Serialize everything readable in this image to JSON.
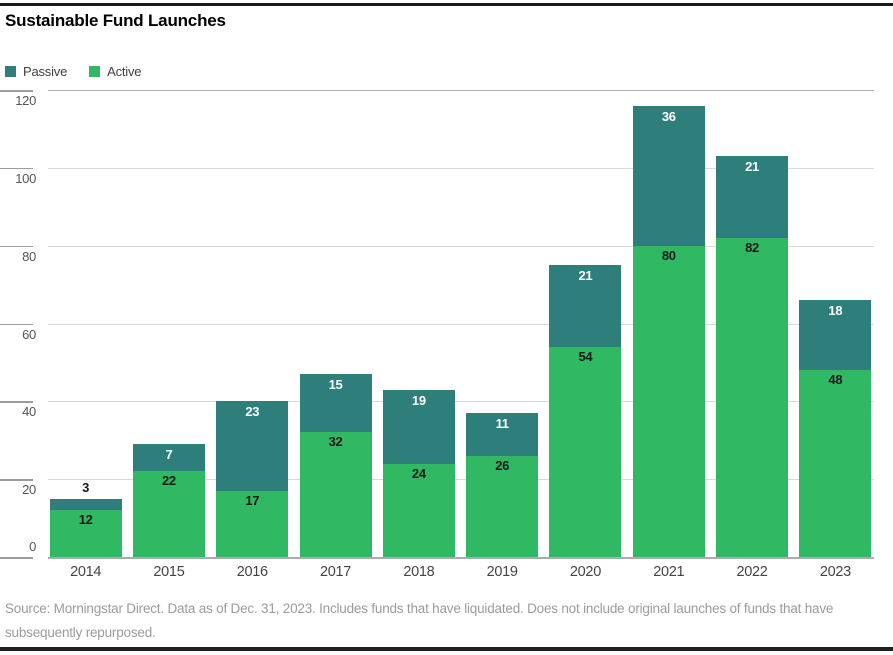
{
  "page": {
    "title": "Sustainable Fund Launches",
    "source_line": "Source: Morningstar Direct. Data as of Dec. 31, 2023. Includes funds that have liquidated. Does not include original launches of funds that have subsequently repurposed."
  },
  "legend": {
    "items": [
      {
        "label": "Passive",
        "color": "#2e7e7b"
      },
      {
        "label": "Active",
        "color": "#31b863"
      }
    ]
  },
  "chart_data": {
    "type": "bar",
    "stacked": true,
    "title": "Sustainable Fund Launches",
    "categories": [
      "2014",
      "2015",
      "2016",
      "2017",
      "2018",
      "2019",
      "2020",
      "2021",
      "2022",
      "2023"
    ],
    "series": [
      {
        "name": "Passive",
        "color": "#2e7e7b",
        "values": [
          3,
          7,
          23,
          15,
          19,
          11,
          21,
          36,
          21,
          18
        ]
      },
      {
        "name": "Active",
        "color": "#31b863",
        "values": [
          12,
          22,
          17,
          32,
          24,
          26,
          54,
          80,
          82,
          48
        ]
      }
    ],
    "totals": [
      15,
      29,
      40,
      47,
      43,
      37,
      75,
      116,
      103,
      66
    ],
    "ylim": [
      0,
      120
    ],
    "yticks": [
      0,
      20,
      40,
      60,
      80,
      100,
      120
    ],
    "grid": true,
    "legend_position": "top-left",
    "label_colors": {
      "passive_inside": "#ffffff",
      "active_inside": "#1a1a1a"
    }
  }
}
